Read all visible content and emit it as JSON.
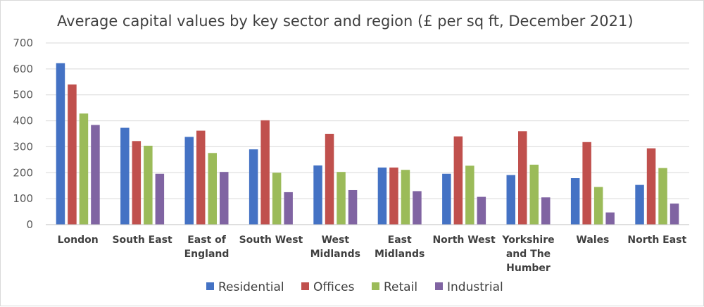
{
  "chart_data": {
    "type": "bar",
    "title": "Average capital values by key sector and region (£ per sq ft, December 2021)",
    "xlabel": "",
    "ylabel": "",
    "ylim": [
      0,
      700
    ],
    "yticks": [
      0,
      100,
      200,
      300,
      400,
      500,
      600,
      700
    ],
    "grid": true,
    "legend_position": "bottom",
    "categories": [
      [
        "London"
      ],
      [
        "South East"
      ],
      [
        "East of",
        "England"
      ],
      [
        "South West"
      ],
      [
        "West",
        "Midlands"
      ],
      [
        "East",
        "Midlands"
      ],
      [
        "North West"
      ],
      [
        "Yorkshire",
        "and The",
        "Humber"
      ],
      [
        "Wales"
      ],
      [
        "North East"
      ]
    ],
    "series": [
      {
        "name": "Residential",
        "color": "#4472c4",
        "values": [
          622,
          373,
          338,
          290,
          228,
          220,
          196,
          191,
          179,
          153
        ]
      },
      {
        "name": "Offices",
        "color": "#c0504d",
        "values": [
          540,
          322,
          362,
          402,
          350,
          220,
          340,
          360,
          318,
          294
        ]
      },
      {
        "name": "Retail",
        "color": "#9bbb59",
        "values": [
          428,
          304,
          276,
          200,
          203,
          211,
          227,
          231,
          145,
          218
        ]
      },
      {
        "name": "Industrial",
        "color": "#8064a2",
        "values": [
          384,
          196,
          203,
          125,
          133,
          129,
          107,
          105,
          47,
          81
        ]
      }
    ]
  }
}
